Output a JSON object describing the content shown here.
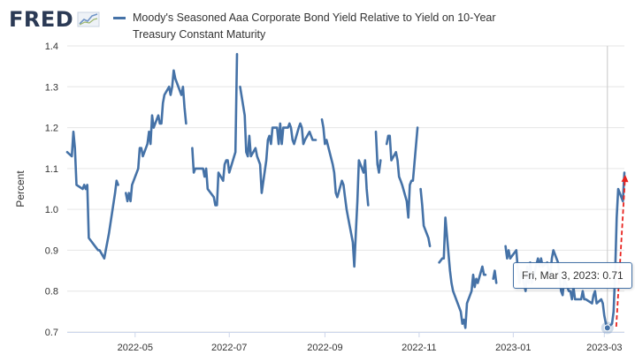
{
  "header": {
    "logo_text": "FRED",
    "logo_icon": "line-chart-icon"
  },
  "tooltip": {
    "date": "Fri, Mar 3, 2023:",
    "value": "0.71"
  },
  "colors": {
    "series": "#4572a7",
    "grid": "#e6e6e6",
    "axis": "#ccd6eb",
    "annotation": "#e8231f"
  },
  "chart_data": {
    "type": "line",
    "title": "",
    "xlabel": "",
    "ylabel": "Percent",
    "ylim": [
      0.7,
      1.4
    ],
    "yticks": [
      "0.7",
      "0.8",
      "0.9",
      "1.0",
      "1.1",
      "1.2",
      "1.3",
      "1.4"
    ],
    "xticks": [
      {
        "date": "2022-05-01",
        "label": "2022-05"
      },
      {
        "date": "2022-07-01",
        "label": "2022-07"
      },
      {
        "date": "2022-09-01",
        "label": "2022-09"
      },
      {
        "date": "2022-11-01",
        "label": "2022-11"
      },
      {
        "date": "2023-01-01",
        "label": "2023-01"
      },
      {
        "date": "2023-03-01",
        "label": "2023-03"
      }
    ],
    "xrange": [
      "2022-03-18",
      "2023-03-14"
    ],
    "grid": "horizontal",
    "legend_placement": "top",
    "highlight_date": "2023-03-03",
    "series": [
      {
        "name": "Moody's Seasoned Aaa Corporate Bond Yield Relative to Yield on 10-Year Treasury Constant Maturity",
        "points": [
          [
            "2022-03-18",
            1.14
          ],
          [
            "2022-03-21",
            1.13
          ],
          [
            "2022-03-22",
            1.19
          ],
          [
            "2022-03-23",
            1.15
          ],
          [
            "2022-03-24",
            1.06
          ],
          [
            "2022-03-28",
            1.05
          ],
          [
            "2022-03-29",
            1.06
          ],
          [
            "2022-03-30",
            1.05
          ],
          [
            "2022-03-31",
            1.06
          ],
          [
            "2022-04-01",
            0.93
          ],
          [
            "2022-04-05",
            0.91
          ],
          [
            "2022-04-07",
            0.9
          ],
          [
            "2022-04-08",
            0.9
          ],
          [
            "2022-04-11",
            0.88
          ],
          [
            "2022-04-12",
            0.9
          ],
          [
            "2022-04-14",
            0.94
          ],
          [
            "2022-04-18",
            1.04
          ],
          [
            "2022-04-19",
            1.07
          ],
          [
            "2022-04-20",
            1.06
          ],
          null,
          [
            "2022-04-25",
            1.04
          ],
          [
            "2022-04-26",
            1.02
          ],
          [
            "2022-04-27",
            1.04
          ],
          [
            "2022-04-28",
            1.02
          ],
          [
            "2022-04-29",
            1.06
          ],
          [
            "2022-05-03",
            1.1
          ],
          [
            "2022-05-04",
            1.15
          ],
          [
            "2022-05-05",
            1.15
          ],
          [
            "2022-05-06",
            1.13
          ],
          [
            "2022-05-09",
            1.16
          ],
          [
            "2022-05-10",
            1.19
          ],
          [
            "2022-05-11",
            1.16
          ],
          [
            "2022-05-12",
            1.23
          ],
          [
            "2022-05-13",
            1.2
          ],
          [
            "2022-05-16",
            1.23
          ],
          [
            "2022-05-17",
            1.21
          ],
          [
            "2022-05-18",
            1.21
          ],
          [
            "2022-05-19",
            1.26
          ],
          [
            "2022-05-20",
            1.28
          ],
          [
            "2022-05-23",
            1.3
          ],
          [
            "2022-05-24",
            1.28
          ],
          [
            "2022-05-25",
            1.3
          ],
          [
            "2022-05-26",
            1.34
          ],
          [
            "2022-05-27",
            1.32
          ],
          [
            "2022-05-31",
            1.28
          ],
          [
            "2022-06-01",
            1.3
          ],
          [
            "2022-06-02",
            1.25
          ],
          [
            "2022-06-03",
            1.21
          ],
          null,
          [
            "2022-06-07",
            1.15
          ],
          [
            "2022-06-08",
            1.09
          ],
          [
            "2022-06-09",
            1.1
          ],
          [
            "2022-06-10",
            1.1
          ],
          [
            "2022-06-13",
            1.1
          ],
          [
            "2022-06-14",
            1.1
          ],
          [
            "2022-06-15",
            1.08
          ],
          [
            "2022-06-16",
            1.1
          ],
          [
            "2022-06-17",
            1.05
          ],
          [
            "2022-06-21",
            1.03
          ],
          [
            "2022-06-22",
            1.01
          ],
          [
            "2022-06-23",
            1.01
          ],
          [
            "2022-06-24",
            1.09
          ],
          [
            "2022-06-27",
            1.07
          ],
          [
            "2022-06-28",
            1.11
          ],
          [
            "2022-06-29",
            1.12
          ],
          [
            "2022-06-30",
            1.12
          ],
          [
            "2022-07-01",
            1.09
          ],
          [
            "2022-07-05",
            1.14
          ],
          [
            "2022-07-06",
            1.38
          ],
          null,
          [
            "2022-07-08",
            1.3
          ],
          [
            "2022-07-11",
            1.23
          ],
          [
            "2022-07-12",
            1.14
          ],
          [
            "2022-07-13",
            1.13
          ],
          [
            "2022-07-14",
            1.18
          ],
          [
            "2022-07-15",
            1.13
          ],
          [
            "2022-07-18",
            1.15
          ],
          [
            "2022-07-19",
            1.13
          ],
          [
            "2022-07-20",
            1.12
          ],
          [
            "2022-07-21",
            1.11
          ],
          [
            "2022-07-22",
            1.04
          ],
          [
            "2022-07-25",
            1.12
          ],
          [
            "2022-07-26",
            1.17
          ],
          [
            "2022-07-27",
            1.18
          ],
          [
            "2022-07-28",
            1.16
          ],
          [
            "2022-07-29",
            1.2
          ],
          [
            "2022-08-01",
            1.2
          ],
          [
            "2022-08-02",
            1.16
          ],
          [
            "2022-08-03",
            1.21
          ],
          [
            "2022-08-04",
            1.16
          ],
          [
            "2022-08-05",
            1.2
          ],
          [
            "2022-08-08",
            1.2
          ],
          [
            "2022-08-09",
            1.21
          ],
          [
            "2022-08-10",
            1.2
          ],
          [
            "2022-08-11",
            1.17
          ],
          [
            "2022-08-12",
            1.16
          ],
          [
            "2022-08-15",
            1.2
          ],
          [
            "2022-08-16",
            1.21
          ],
          [
            "2022-08-17",
            1.2
          ],
          [
            "2022-08-18",
            1.16
          ],
          [
            "2022-08-19",
            1.17
          ],
          [
            "2022-08-22",
            1.19
          ],
          [
            "2022-08-23",
            1.18
          ],
          [
            "2022-08-24",
            1.17
          ],
          [
            "2022-08-25",
            1.17
          ],
          [
            "2022-08-26",
            1.17
          ],
          null,
          [
            "2022-08-30",
            1.22
          ],
          [
            "2022-08-31",
            1.2
          ],
          [
            "2022-09-01",
            1.16
          ],
          [
            "2022-09-02",
            1.17
          ],
          [
            "2022-09-06",
            1.11
          ],
          [
            "2022-09-07",
            1.09
          ],
          [
            "2022-09-08",
            1.04
          ],
          [
            "2022-09-09",
            1.03
          ],
          [
            "2022-09-12",
            1.07
          ],
          [
            "2022-09-13",
            1.06
          ],
          [
            "2022-09-14",
            1.03
          ],
          [
            "2022-09-15",
            1.0
          ],
          [
            "2022-09-16",
            0.98
          ],
          [
            "2022-09-19",
            0.92
          ],
          [
            "2022-09-20",
            0.86
          ],
          [
            "2022-09-21",
            0.94
          ],
          [
            "2022-09-22",
            1.02
          ],
          [
            "2022-09-23",
            1.12
          ],
          [
            "2022-09-26",
            1.09
          ],
          [
            "2022-09-27",
            1.12
          ],
          [
            "2022-09-28",
            1.05
          ],
          [
            "2022-09-29",
            1.01
          ],
          null,
          [
            "2022-10-04",
            1.19
          ],
          [
            "2022-10-05",
            1.11
          ],
          [
            "2022-10-06",
            1.09
          ],
          [
            "2022-10-07",
            1.12
          ],
          null,
          [
            "2022-10-11",
            1.16
          ],
          [
            "2022-10-12",
            1.18
          ],
          [
            "2022-10-13",
            1.18
          ],
          [
            "2022-10-14",
            1.12
          ],
          [
            "2022-10-17",
            1.14
          ],
          [
            "2022-10-18",
            1.12
          ],
          [
            "2022-10-19",
            1.08
          ],
          [
            "2022-10-20",
            1.07
          ],
          [
            "2022-10-21",
            1.06
          ],
          [
            "2022-10-24",
            1.02
          ],
          [
            "2022-10-25",
            0.98
          ],
          [
            "2022-10-26",
            1.06
          ],
          [
            "2022-10-27",
            1.07
          ],
          [
            "2022-10-28",
            1.07
          ],
          [
            "2022-10-31",
            1.2
          ],
          null,
          [
            "2022-11-02",
            1.05
          ],
          [
            "2022-11-03",
            1.01
          ],
          [
            "2022-11-04",
            0.96
          ],
          [
            "2022-11-07",
            0.93
          ],
          [
            "2022-11-08",
            0.91
          ],
          null,
          [
            "2022-11-14",
            0.87
          ],
          [
            "2022-11-16",
            0.88
          ],
          [
            "2022-11-17",
            0.88
          ],
          [
            "2022-11-18",
            0.98
          ],
          [
            "2022-11-21",
            0.85
          ],
          [
            "2022-11-22",
            0.82
          ],
          [
            "2022-11-23",
            0.8
          ],
          [
            "2022-11-28",
            0.75
          ],
          [
            "2022-11-29",
            0.72
          ],
          [
            "2022-11-30",
            0.73
          ],
          [
            "2022-12-01",
            0.71
          ],
          [
            "2022-12-02",
            0.77
          ],
          [
            "2022-12-05",
            0.8
          ],
          [
            "2022-12-06",
            0.84
          ],
          [
            "2022-12-07",
            0.81
          ],
          [
            "2022-12-08",
            0.83
          ],
          [
            "2022-12-09",
            0.82
          ],
          [
            "2022-12-12",
            0.86
          ],
          [
            "2022-12-13",
            0.84
          ],
          [
            "2022-12-14",
            0.84
          ],
          null,
          [
            "2022-12-19",
            0.83
          ],
          [
            "2022-12-20",
            0.85
          ],
          [
            "2022-12-21",
            0.82
          ],
          null,
          [
            "2022-12-27",
            0.91
          ],
          [
            "2022-12-28",
            0.88
          ],
          [
            "2022-12-29",
            0.9
          ],
          [
            "2022-12-30",
            0.88
          ],
          [
            "2023-01-03",
            0.9
          ],
          [
            "2023-01-04",
            0.85
          ],
          [
            "2023-01-05",
            0.82
          ],
          [
            "2023-01-06",
            0.85
          ],
          [
            "2023-01-09",
            0.8
          ],
          [
            "2023-01-10",
            0.86
          ],
          [
            "2023-01-11",
            0.82
          ],
          [
            "2023-01-12",
            0.87
          ],
          [
            "2023-01-13",
            0.82
          ],
          [
            "2023-01-17",
            0.88
          ],
          [
            "2023-01-18",
            0.86
          ],
          [
            "2023-01-19",
            0.88
          ],
          [
            "2023-01-20",
            0.86
          ],
          [
            "2023-01-23",
            0.87
          ],
          [
            "2023-01-24",
            0.85
          ],
          [
            "2023-01-25",
            0.84
          ],
          [
            "2023-01-26",
            0.88
          ],
          [
            "2023-01-27",
            0.9
          ],
          [
            "2023-01-30",
            0.87
          ],
          [
            "2023-01-31",
            0.84
          ],
          [
            "2023-02-01",
            0.8
          ],
          [
            "2023-02-02",
            0.79
          ],
          [
            "2023-02-03",
            0.83
          ],
          [
            "2023-02-06",
            0.8
          ],
          [
            "2023-02-07",
            0.8
          ],
          [
            "2023-02-08",
            0.78
          ],
          [
            "2023-02-09",
            0.81
          ],
          [
            "2023-02-10",
            0.78
          ],
          [
            "2023-02-13",
            0.78
          ],
          [
            "2023-02-14",
            0.78
          ],
          [
            "2023-02-15",
            0.8
          ],
          [
            "2023-02-16",
            0.78
          ],
          [
            "2023-02-17",
            0.78
          ],
          [
            "2023-02-21",
            0.77
          ],
          [
            "2023-02-22",
            0.79
          ],
          [
            "2023-02-23",
            0.8
          ],
          [
            "2023-02-24",
            0.77
          ],
          [
            "2023-02-27",
            0.78
          ],
          [
            "2023-02-28",
            0.77
          ],
          [
            "2023-03-01",
            0.74
          ],
          [
            "2023-03-02",
            0.72
          ],
          [
            "2023-03-03",
            0.71
          ],
          [
            "2023-03-06",
            0.72
          ],
          [
            "2023-03-07",
            0.75
          ],
          [
            "2023-03-08",
            0.84
          ],
          [
            "2023-03-09",
            0.98
          ],
          [
            "2023-03-10",
            1.05
          ],
          [
            "2023-03-13",
            1.02
          ],
          [
            "2023-03-14",
            1.09
          ]
        ]
      }
    ]
  }
}
